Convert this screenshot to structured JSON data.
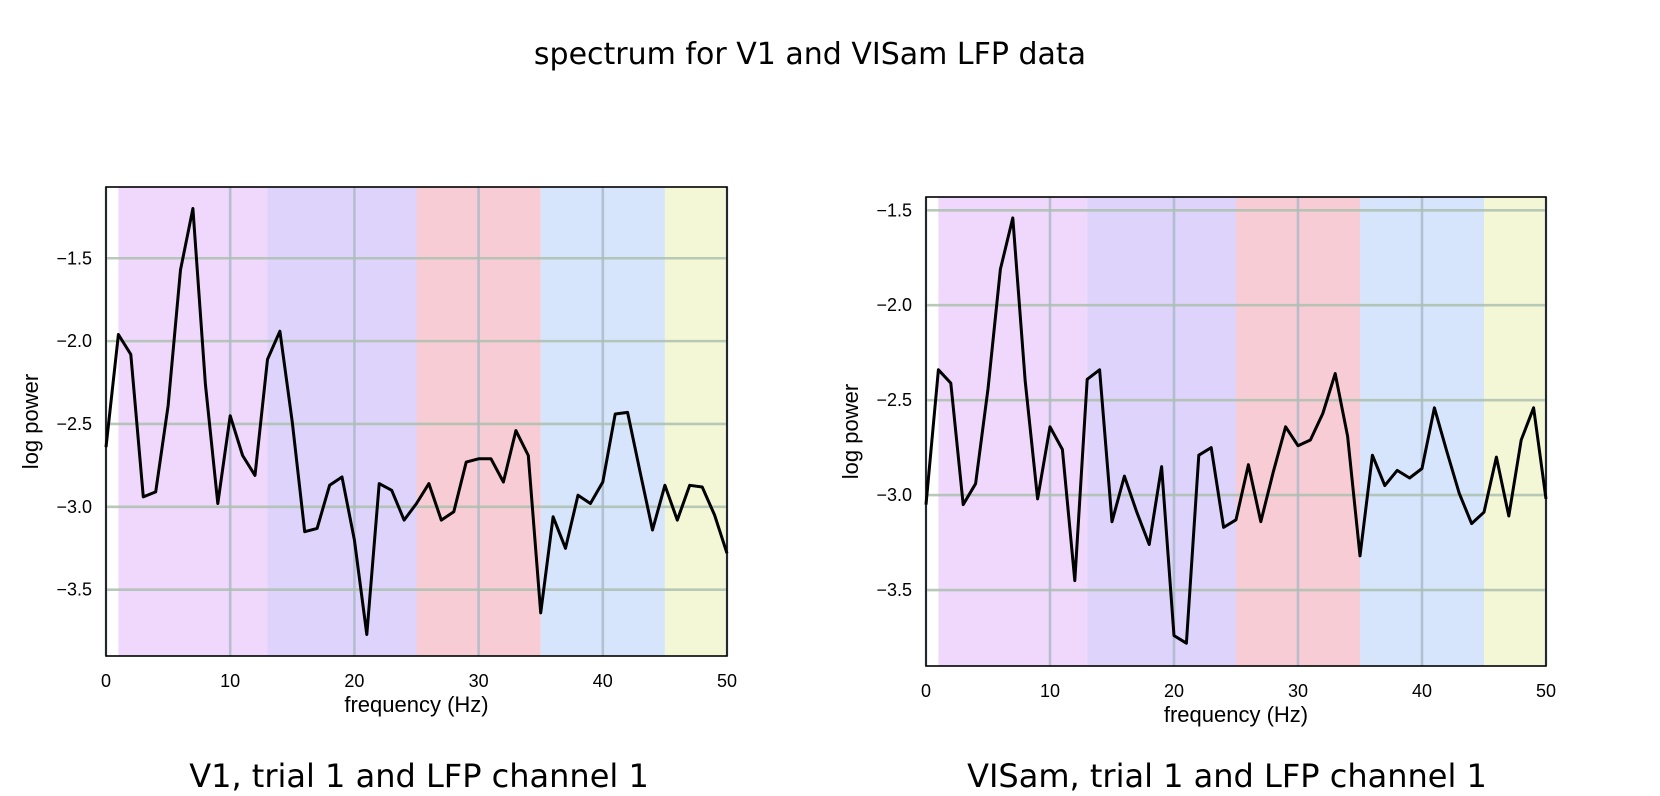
{
  "figure": {
    "title": "spectrum for V1 and VISam LFP data"
  },
  "band_colors": [
    "#efd8fb",
    "#ddd3fb",
    "#f8ccd5",
    "#d6e5fb",
    "#f3f7d6"
  ],
  "chart_data": [
    {
      "type": "line",
      "title": "V1, trial 1 and LFP channel 1",
      "xlabel": "frequency (Hz)",
      "ylabel": "log power",
      "xlim": [
        0,
        50
      ],
      "ylim": [
        -3.9,
        -1.07
      ],
      "xticks": [
        0,
        10,
        20,
        30,
        40,
        50
      ],
      "xtick_labels": [
        "0",
        "10",
        "20",
        "30",
        "40",
        "50"
      ],
      "yticks": [
        -3.5,
        -3.0,
        -2.5,
        -2.0,
        -1.5
      ],
      "ytick_labels": [
        "−3.5",
        "−3.0",
        "−2.5",
        "−2.0",
        "−1.5"
      ],
      "grid": true,
      "bands": [
        {
          "from": 1,
          "to": 13
        },
        {
          "from": 13,
          "to": 25
        },
        {
          "from": 25,
          "to": 35
        },
        {
          "from": 35,
          "to": 45
        },
        {
          "from": 45,
          "to": 50
        }
      ],
      "x": [
        0,
        1,
        2,
        3,
        4,
        5,
        6,
        7,
        8,
        9,
        10,
        11,
        12,
        13,
        14,
        15,
        16,
        17,
        18,
        19,
        20,
        21,
        22,
        23,
        24,
        25,
        26,
        27,
        28,
        29,
        30,
        31,
        32,
        33,
        34,
        35,
        36,
        37,
        38,
        39,
        40,
        41,
        42,
        43,
        44,
        45,
        46,
        47,
        48,
        49,
        50
      ],
      "values": [
        -2.64,
        -1.96,
        -2.08,
        -2.94,
        -2.91,
        -2.39,
        -1.57,
        -1.2,
        -2.26,
        -2.98,
        -2.45,
        -2.69,
        -2.81,
        -2.11,
        -1.94,
        -2.49,
        -3.15,
        -3.13,
        -2.87,
        -2.82,
        -3.2,
        -3.77,
        -2.86,
        -2.9,
        -3.08,
        -2.98,
        -2.86,
        -3.08,
        -3.03,
        -2.73,
        -2.71,
        -2.71,
        -2.85,
        -2.54,
        -2.69,
        -3.64,
        -3.06,
        -3.25,
        -2.93,
        -2.98,
        -2.85,
        -2.44,
        -2.43,
        -2.79,
        -3.14,
        -2.87,
        -3.08,
        -2.87,
        -2.88,
        -3.05,
        -3.28
      ]
    },
    {
      "type": "line",
      "title": "VISam, trial 1 and LFP channel 1",
      "xlabel": "frequency (Hz)",
      "ylabel": "log power",
      "xlim": [
        0,
        50
      ],
      "ylim": [
        -3.9,
        -1.43
      ],
      "xticks": [
        0,
        10,
        20,
        30,
        40,
        50
      ],
      "xtick_labels": [
        "0",
        "10",
        "20",
        "30",
        "40",
        "50"
      ],
      "yticks": [
        -3.5,
        -3.0,
        -2.5,
        -2.0,
        -1.5
      ],
      "ytick_labels": [
        "−3.5",
        "−3.0",
        "−2.5",
        "−2.0",
        "−1.5"
      ],
      "grid": true,
      "bands": [
        {
          "from": 1,
          "to": 13
        },
        {
          "from": 13,
          "to": 25
        },
        {
          "from": 25,
          "to": 35
        },
        {
          "from": 35,
          "to": 45
        },
        {
          "from": 45,
          "to": 50
        }
      ],
      "x": [
        0,
        1,
        2,
        3,
        4,
        5,
        6,
        7,
        8,
        9,
        10,
        11,
        12,
        13,
        14,
        15,
        16,
        17,
        18,
        19,
        20,
        21,
        22,
        23,
        24,
        25,
        26,
        27,
        28,
        29,
        30,
        31,
        32,
        33,
        34,
        35,
        36,
        37,
        38,
        39,
        40,
        41,
        42,
        43,
        44,
        45,
        46,
        47,
        48,
        49,
        50
      ],
      "values": [
        -3.05,
        -2.34,
        -2.41,
        -3.05,
        -2.94,
        -2.44,
        -1.81,
        -1.54,
        -2.4,
        -3.02,
        -2.64,
        -2.76,
        -3.45,
        -2.39,
        -2.34,
        -3.14,
        -2.9,
        -3.09,
        -3.26,
        -2.85,
        -3.74,
        -3.78,
        -2.79,
        -2.75,
        -3.17,
        -3.13,
        -2.84,
        -3.14,
        -2.88,
        -2.64,
        -2.74,
        -2.71,
        -2.57,
        -2.36,
        -2.69,
        -3.32,
        -2.79,
        -2.95,
        -2.87,
        -2.91,
        -2.86,
        -2.54,
        -2.77,
        -2.99,
        -3.15,
        -3.09,
        -2.8,
        -3.11,
        -2.71,
        -2.54,
        -3.02
      ]
    }
  ]
}
